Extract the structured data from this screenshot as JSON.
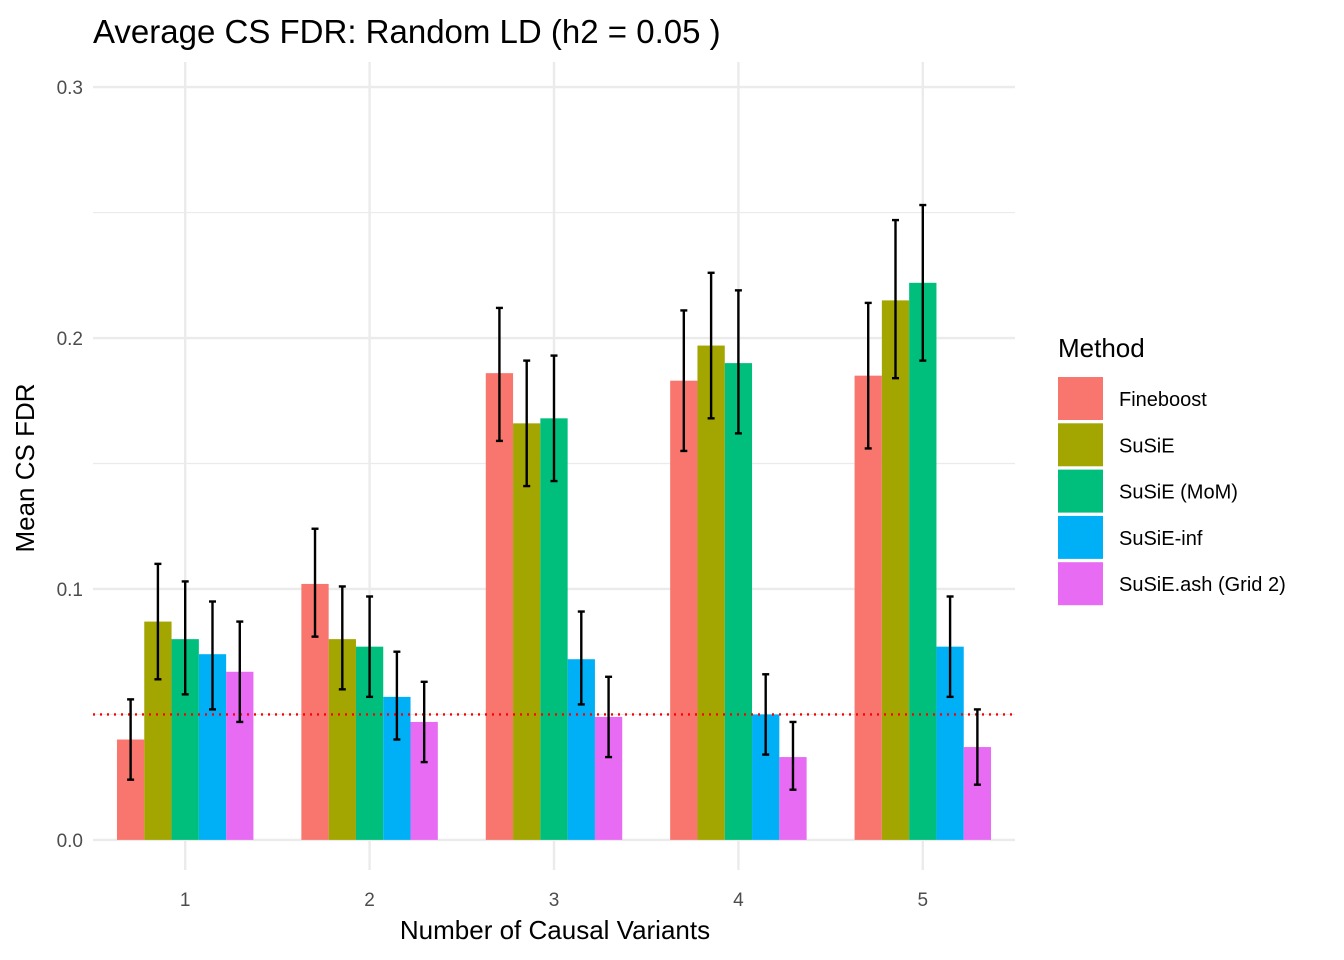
{
  "chart_data": {
    "type": "bar",
    "title": "Average CS FDR: Random LD (h2 = 0.05 )",
    "xlabel": "Number of Causal Variants",
    "ylabel": "Mean CS FDR",
    "categories": [
      "1",
      "2",
      "3",
      "4",
      "5"
    ],
    "ylim": [
      -0.012,
      0.31
    ],
    "yticks": [
      0.0,
      0.1,
      0.2,
      0.3
    ],
    "ytick_labels": [
      "0.0",
      "0.1",
      "0.2",
      "0.3"
    ],
    "grid": true,
    "reference_line": {
      "value": 0.05,
      "style": "dotted",
      "color": "#ff0000"
    },
    "legend": {
      "title": "Method",
      "position": "right"
    },
    "series": [
      {
        "name": "Fineboost",
        "color": "#F8766D",
        "values": [
          0.04,
          0.102,
          0.186,
          0.183,
          0.185
        ],
        "lower": [
          0.024,
          0.081,
          0.159,
          0.155,
          0.156
        ],
        "upper": [
          0.056,
          0.124,
          0.212,
          0.211,
          0.214
        ]
      },
      {
        "name": "SuSiE",
        "color": "#A3A500",
        "values": [
          0.087,
          0.08,
          0.166,
          0.197,
          0.215
        ],
        "lower": [
          0.064,
          0.06,
          0.141,
          0.168,
          0.184
        ],
        "upper": [
          0.11,
          0.101,
          0.191,
          0.226,
          0.247
        ]
      },
      {
        "name": "SuSiE (MoM)",
        "color": "#00BF7D",
        "values": [
          0.08,
          0.077,
          0.168,
          0.19,
          0.222
        ],
        "lower": [
          0.058,
          0.057,
          0.143,
          0.162,
          0.191
        ],
        "upper": [
          0.103,
          0.097,
          0.193,
          0.219,
          0.253
        ]
      },
      {
        "name": "SuSiE-inf",
        "color": "#00B0F6",
        "values": [
          0.074,
          0.057,
          0.072,
          0.05,
          0.077
        ],
        "lower": [
          0.052,
          0.04,
          0.054,
          0.034,
          0.057
        ],
        "upper": [
          0.095,
          0.075,
          0.091,
          0.066,
          0.097
        ]
      },
      {
        "name": "SuSiE.ash (Grid 2)",
        "color": "#E76BF3",
        "values": [
          0.067,
          0.047,
          0.049,
          0.033,
          0.037
        ],
        "lower": [
          0.047,
          0.031,
          0.033,
          0.02,
          0.022
        ],
        "upper": [
          0.087,
          0.063,
          0.065,
          0.047,
          0.052
        ]
      }
    ]
  }
}
